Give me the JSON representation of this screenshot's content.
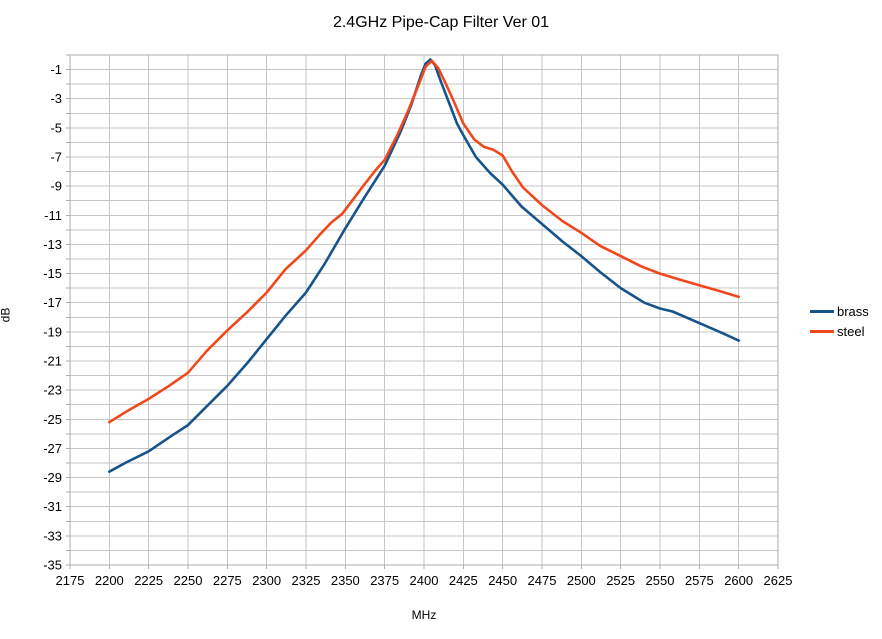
{
  "chart_data": {
    "type": "line",
    "title": "2.4GHz Pipe-Cap Filter Ver 01",
    "xlabel": "MHz",
    "ylabel": "dB",
    "xlim": [
      2175,
      2625
    ],
    "ylim": [
      -35,
      0
    ],
    "x_grid_step": 25,
    "y_grid_step": 1,
    "grid": true,
    "legend_position": "right",
    "x_ticks": [
      2175,
      2200,
      2225,
      2250,
      2275,
      2300,
      2325,
      2350,
      2375,
      2400,
      2425,
      2450,
      2475,
      2500,
      2525,
      2550,
      2575,
      2600,
      2625
    ],
    "y_ticks": [
      -1,
      -3,
      -5,
      -7,
      -9,
      -11,
      -13,
      -15,
      -17,
      -19,
      -21,
      -23,
      -25,
      -27,
      -29,
      -31,
      -33,
      -35
    ],
    "colors": {
      "grid": "#c6c6c6",
      "border": "#adadad",
      "text": "#000000"
    },
    "series": [
      {
        "name": "brass",
        "color": "#17548c",
        "points": [
          [
            2200,
            -28.6
          ],
          [
            2210,
            -28.0
          ],
          [
            2225,
            -27.2
          ],
          [
            2240,
            -26.1
          ],
          [
            2250,
            -25.4
          ],
          [
            2262,
            -24.1
          ],
          [
            2275,
            -22.7
          ],
          [
            2288,
            -21.1
          ],
          [
            2300,
            -19.5
          ],
          [
            2312,
            -17.9
          ],
          [
            2325,
            -16.3
          ],
          [
            2337,
            -14.3
          ],
          [
            2350,
            -11.9
          ],
          [
            2362,
            -9.8
          ],
          [
            2375,
            -7.6
          ],
          [
            2385,
            -5.3
          ],
          [
            2392,
            -3.4
          ],
          [
            2398,
            -1.4
          ],
          [
            2401,
            -0.6
          ],
          [
            2404,
            -0.3
          ],
          [
            2407,
            -0.7
          ],
          [
            2411,
            -1.9
          ],
          [
            2416,
            -3.3
          ],
          [
            2421,
            -4.7
          ],
          [
            2425,
            -5.5
          ],
          [
            2433,
            -7.0
          ],
          [
            2442,
            -8.1
          ],
          [
            2450,
            -8.9
          ],
          [
            2462,
            -10.4
          ],
          [
            2475,
            -11.6
          ],
          [
            2488,
            -12.8
          ],
          [
            2500,
            -13.8
          ],
          [
            2512,
            -14.9
          ],
          [
            2525,
            -16.0
          ],
          [
            2540,
            -17.0
          ],
          [
            2550,
            -17.4
          ],
          [
            2558,
            -17.6
          ],
          [
            2575,
            -18.4
          ],
          [
            2590,
            -19.1
          ],
          [
            2600,
            -19.6
          ]
        ]
      },
      {
        "name": "steel",
        "color": "#f0481c",
        "points": [
          [
            2200,
            -25.2
          ],
          [
            2212,
            -24.4
          ],
          [
            2225,
            -23.6
          ],
          [
            2238,
            -22.7
          ],
          [
            2250,
            -21.8
          ],
          [
            2262,
            -20.3
          ],
          [
            2275,
            -18.9
          ],
          [
            2288,
            -17.6
          ],
          [
            2300,
            -16.3
          ],
          [
            2312,
            -14.7
          ],
          [
            2325,
            -13.4
          ],
          [
            2334,
            -12.3
          ],
          [
            2341,
            -11.5
          ],
          [
            2348,
            -10.9
          ],
          [
            2355,
            -9.9
          ],
          [
            2362,
            -8.9
          ],
          [
            2370,
            -7.8
          ],
          [
            2375,
            -7.2
          ],
          [
            2383,
            -5.5
          ],
          [
            2390,
            -3.8
          ],
          [
            2396,
            -2.2
          ],
          [
            2401,
            -0.8
          ],
          [
            2405,
            -0.4
          ],
          [
            2409,
            -0.9
          ],
          [
            2414,
            -2.0
          ],
          [
            2419,
            -3.2
          ],
          [
            2425,
            -4.7
          ],
          [
            2432,
            -5.8
          ],
          [
            2438,
            -6.3
          ],
          [
            2444,
            -6.5
          ],
          [
            2450,
            -6.9
          ],
          [
            2456,
            -8.0
          ],
          [
            2463,
            -9.1
          ],
          [
            2475,
            -10.3
          ],
          [
            2488,
            -11.4
          ],
          [
            2500,
            -12.2
          ],
          [
            2512,
            -13.1
          ],
          [
            2525,
            -13.8
          ],
          [
            2538,
            -14.5
          ],
          [
            2550,
            -15.0
          ],
          [
            2562,
            -15.4
          ],
          [
            2575,
            -15.8
          ],
          [
            2588,
            -16.2
          ],
          [
            2600,
            -16.6
          ]
        ]
      }
    ]
  }
}
